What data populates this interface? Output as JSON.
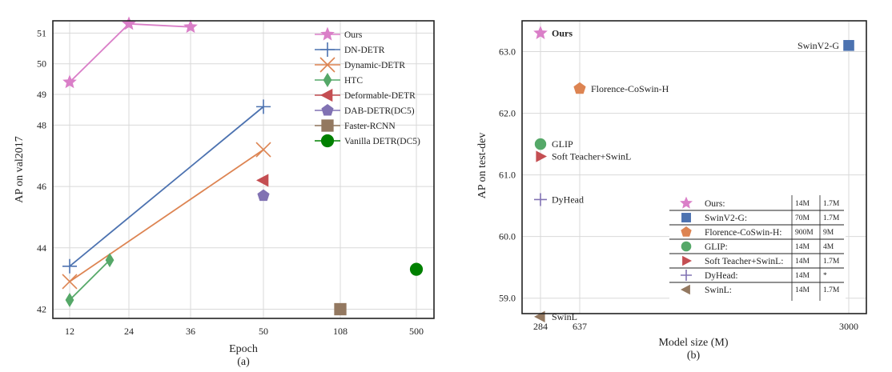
{
  "chart_data": [
    {
      "type": "line",
      "title": "",
      "caption": "(a)",
      "xlabel": "Epoch",
      "ylabel": "AP on val2017",
      "x_categories": [
        "12",
        "24",
        "36",
        "50",
        "108",
        "500"
      ],
      "ylim": [
        41.7,
        51.4
      ],
      "yticks": [
        "42",
        "44",
        "46",
        "48",
        "49",
        "50",
        "51"
      ],
      "grid": true,
      "legend": "top-right",
      "series": [
        {
          "name": "Ours",
          "color": "#da7fc8",
          "marker": "star",
          "points": [
            [
              "12",
              49.4
            ],
            [
              "24",
              51.3
            ],
            [
              "36",
              51.2
            ]
          ]
        },
        {
          "name": "DN-DETR",
          "color": "#4c72b0",
          "marker": "plus",
          "points": [
            [
              "12",
              43.4
            ],
            [
              "50",
              48.6
            ]
          ]
        },
        {
          "name": "Dynamic-DETR",
          "color": "#dd8452",
          "marker": "x",
          "points": [
            [
              "12",
              42.9
            ],
            [
              "50",
              47.2
            ]
          ]
        },
        {
          "name": "HTC",
          "color": "#55a868",
          "marker": "thin-diamond",
          "points": [
            [
              "12",
              42.3
            ],
            [
              "20",
              43.6
            ]
          ]
        },
        {
          "name": "Deformable-DETR",
          "color": "#c44e52",
          "marker": "triangle-left",
          "points": [
            [
              "50",
              46.2
            ]
          ]
        },
        {
          "name": "DAB-DETR(DC5)",
          "color": "#8172b3",
          "marker": "pentagon",
          "points": [
            [
              "50",
              45.7
            ]
          ]
        },
        {
          "name": "Faster-RCNN",
          "color": "#937860",
          "marker": "square",
          "points": [
            [
              "108",
              42.0
            ]
          ]
        },
        {
          "name": "Vanilla DETR(DC5)",
          "color": "#008000",
          "marker": "circle",
          "points": [
            [
              "500",
              43.3
            ]
          ]
        }
      ]
    },
    {
      "type": "scatter",
      "title": "",
      "caption": "(b)",
      "xlabel": "Model size (M)",
      "ylabel": "AP on test-dev",
      "x_categories": [
        "284",
        "637",
        "3000"
      ],
      "ylim": [
        58.75,
        63.5
      ],
      "yticks": [
        "59.0",
        "60.0",
        "61.0",
        "62.0",
        "63.0"
      ],
      "grid": true,
      "legend": "bottom-right",
      "points": [
        {
          "label": "Ours",
          "x": "284",
          "y": 63.3,
          "color": "#da7fc8",
          "marker": "star",
          "bold": true
        },
        {
          "label": "SwinV2-G",
          "x": "3000",
          "y": 63.1,
          "color": "#4c72b0",
          "marker": "square",
          "bold": false
        },
        {
          "label": "Florence-CoSwin-H",
          "x": "637",
          "y": 62.4,
          "color": "#dd8452",
          "marker": "pentagon",
          "bold": false
        },
        {
          "label": "GLIP",
          "x": "284",
          "y": 61.5,
          "color": "#55a868",
          "marker": "circle",
          "bold": false
        },
        {
          "label": "Soft Teacher+SwinL",
          "x": "284",
          "y": 61.3,
          "color": "#c44e52",
          "marker": "triangle-right",
          "bold": false
        },
        {
          "label": "DyHead",
          "x": "284",
          "y": 60.6,
          "color": "#8172b3",
          "marker": "plus",
          "bold": false
        },
        {
          "label": "SwinL",
          "x": "284",
          "y": 58.7,
          "color": "#937860",
          "marker": "triangle-left",
          "bold": false
        }
      ],
      "legend_table": [
        {
          "name": "Ours:",
          "col1": "14M",
          "col2": "1.7M",
          "color": "#da7fc8",
          "marker": "star"
        },
        {
          "name": "SwinV2-G:",
          "col1": "70M",
          "col2": "1.7M",
          "color": "#4c72b0",
          "marker": "square"
        },
        {
          "name": "Florence-CoSwin-H:",
          "col1": "900M",
          "col2": "9M",
          "color": "#dd8452",
          "marker": "pentagon"
        },
        {
          "name": "GLIP:",
          "col1": "14M",
          "col2": "4M",
          "color": "#55a868",
          "marker": "circle"
        },
        {
          "name": "Soft Teacher+SwinL:",
          "col1": "14M",
          "col2": "1.7M",
          "color": "#c44e52",
          "marker": "triangle-right"
        },
        {
          "name": "DyHead:",
          "col1": "14M",
          "col2": "*",
          "color": "#8172b3",
          "marker": "plus"
        },
        {
          "name": "SwinL:",
          "col1": "14M",
          "col2": "1.7M",
          "color": "#937860",
          "marker": "triangle-left"
        }
      ]
    }
  ]
}
